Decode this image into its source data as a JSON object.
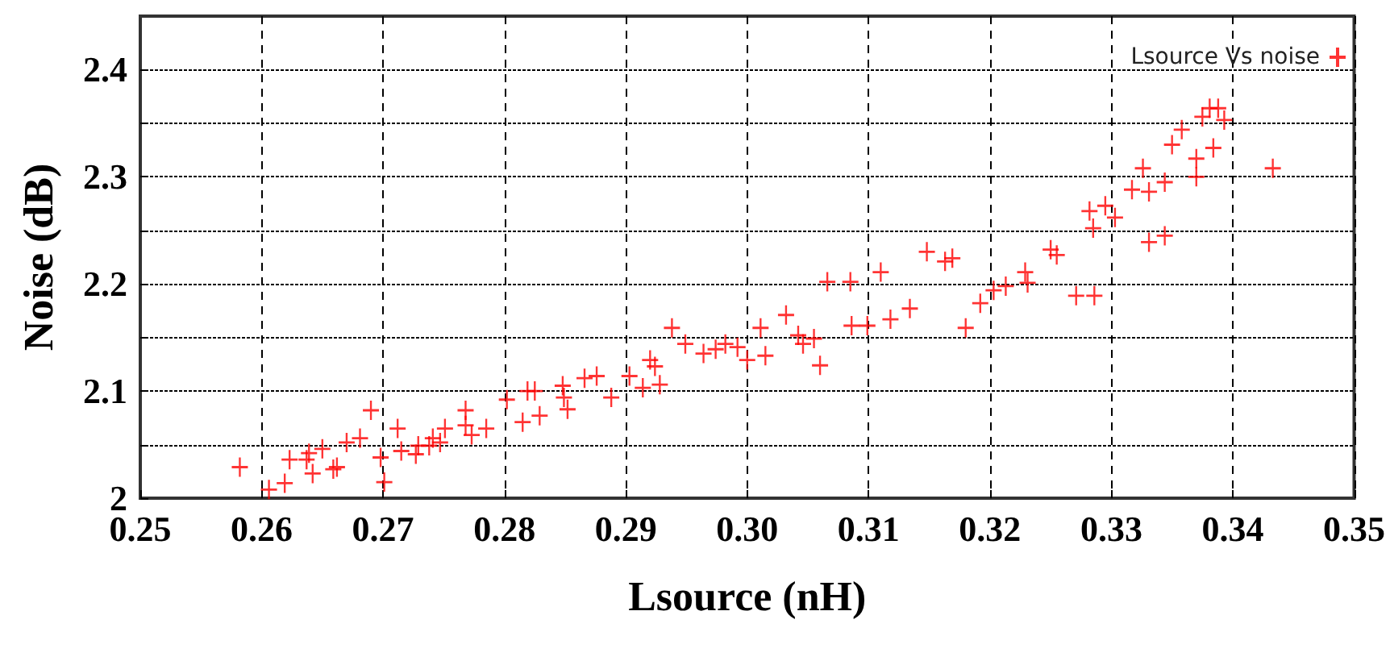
{
  "chart_data": {
    "type": "scatter",
    "xlabel": "Lsource (nH)",
    "ylabel": "Noise (dB)",
    "xlim": [
      0.25,
      0.35
    ],
    "ylim": [
      2,
      2.45
    ],
    "xticks": [
      0.25,
      0.26,
      0.27,
      0.28,
      0.29,
      {
        "value": 0.3,
        "label": "0.30"
      },
      0.31,
      0.32,
      0.33,
      0.34,
      0.35
    ],
    "yticks": [
      2,
      {
        "value": 2.05,
        "label": null
      },
      2.1,
      {
        "value": 2.15,
        "label": null
      },
      2.2,
      {
        "value": 2.25,
        "label": null
      },
      2.3,
      {
        "value": 2.35,
        "label": null
      },
      2.4
    ],
    "grid": true,
    "legend": "top right",
    "marker": "cross",
    "series": [
      {
        "name": "Lsource Vs noise",
        "color": "#ff0000",
        "x": [
          0.2582,
          0.2606,
          0.2619,
          0.2623,
          0.2637,
          0.2639,
          0.2642,
          0.265,
          0.2659,
          0.2662,
          0.267,
          0.2681,
          0.269,
          0.2698,
          0.2701,
          0.2712,
          0.2715,
          0.2727,
          0.2729,
          0.2738,
          0.2741,
          0.2747,
          0.2751,
          0.2768,
          0.2768,
          0.2773,
          0.2785,
          0.2802,
          0.2815,
          0.2819,
          0.2825,
          0.2829,
          0.2848,
          0.2849,
          0.2852,
          0.2866,
          0.2876,
          0.2888,
          0.2903,
          0.2914,
          0.292,
          0.2924,
          0.2928,
          0.2938,
          0.2949,
          0.2964,
          0.2974,
          0.2982,
          0.2992,
          0.3,
          0.3011,
          0.3015,
          0.3032,
          0.3042,
          0.3046,
          0.3055,
          0.306,
          0.3066,
          0.3085,
          0.3086,
          0.3099,
          0.311,
          0.3118,
          0.3134,
          0.3148,
          0.3163,
          0.3169,
          0.318,
          0.3192,
          0.3203,
          0.3213,
          0.3229,
          0.3231,
          0.325,
          0.3255,
          0.3271,
          0.3286,
          0.3282,
          0.3285,
          0.3295,
          0.3303,
          0.3317,
          0.3326,
          0.3331,
          0.3331,
          0.3344,
          0.3344,
          0.335,
          0.3358,
          0.337,
          0.337,
          0.3375,
          0.3381,
          0.3384,
          0.3388,
          0.3393,
          0.3433
        ],
        "values": [
          2.029,
          2.008,
          2.014,
          2.036,
          2.036,
          2.042,
          2.023,
          2.046,
          2.027,
          2.029,
          2.052,
          2.056,
          2.082,
          2.038,
          2.015,
          2.065,
          2.044,
          2.041,
          2.049,
          2.049,
          2.056,
          2.052,
          2.065,
          2.082,
          2.068,
          2.059,
          2.065,
          2.092,
          2.071,
          2.1,
          2.1,
          2.077,
          2.105,
          2.094,
          2.083,
          2.112,
          2.114,
          2.094,
          2.114,
          2.103,
          2.129,
          2.123,
          2.106,
          2.159,
          2.144,
          2.135,
          2.139,
          2.144,
          2.141,
          2.129,
          2.159,
          2.133,
          2.171,
          2.152,
          2.144,
          2.149,
          2.124,
          2.202,
          2.202,
          2.161,
          2.161,
          2.211,
          2.167,
          2.177,
          2.23,
          2.221,
          2.224,
          2.159,
          2.182,
          2.194,
          2.198,
          2.211,
          2.201,
          2.232,
          2.227,
          2.189,
          2.189,
          2.268,
          2.252,
          2.273,
          2.262,
          2.288,
          2.308,
          2.286,
          2.239,
          2.295,
          2.245,
          2.33,
          2.344,
          2.317,
          2.3,
          2.356,
          2.364,
          2.327,
          2.364,
          2.353,
          2.308
        ]
      }
    ]
  }
}
